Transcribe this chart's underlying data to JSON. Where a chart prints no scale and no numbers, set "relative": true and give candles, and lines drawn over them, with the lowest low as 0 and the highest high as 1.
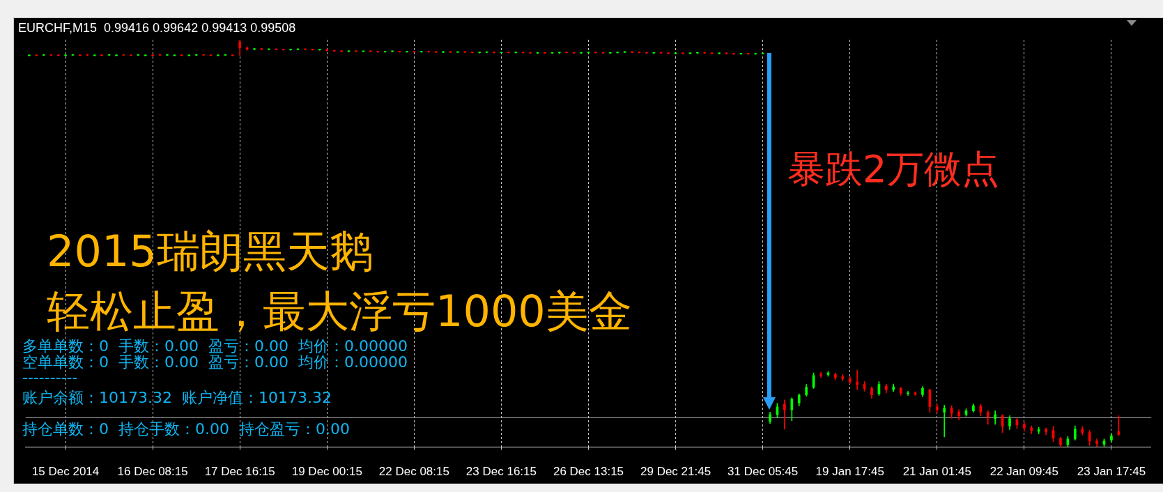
{
  "chart_data": {
    "type": "candlestick",
    "title": "EURCHF,M15  0.99416 0.99642 0.99413 0.99508",
    "relative": true,
    "grid": "x",
    "categories": [
      null,
      null,
      null,
      null,
      null,
      "15 Dec 2014",
      null,
      null,
      null,
      null,
      null,
      null,
      null,
      null,
      null,
      null,
      null,
      "16 Dec 08:15",
      null,
      null,
      null,
      null,
      null,
      null,
      null,
      null,
      null,
      null,
      null,
      "17 Dec 16:15",
      null,
      null,
      null,
      null,
      null,
      null,
      null,
      null,
      null,
      null,
      null,
      "19 Dec 00:15",
      null,
      null,
      null,
      null,
      null,
      null,
      null,
      null,
      null,
      null,
      null,
      "22 Dec 08:15",
      null,
      null,
      null,
      null,
      null,
      null,
      null,
      null,
      null,
      null,
      null,
      "23 Dec 16:15",
      null,
      null,
      null,
      null,
      null,
      null,
      null,
      null,
      null,
      null,
      null,
      "26 Dec 13:15",
      null,
      null,
      null,
      null,
      null,
      null,
      null,
      null,
      null,
      null,
      null,
      "29 Dec 21:45",
      null,
      null,
      null,
      null,
      null,
      null,
      null,
      null,
      null,
      null,
      null,
      "31 Dec 05:45",
      null,
      null,
      null,
      null,
      null,
      null,
      null,
      null,
      null,
      null,
      null,
      "19 Jan 17:45",
      null,
      null,
      null,
      null,
      null,
      null,
      null,
      null,
      null,
      null,
      null,
      "21 Jan 01:45",
      null,
      null,
      null,
      null,
      null,
      null,
      null,
      null,
      null,
      null,
      null,
      "22 Jan 09:45",
      null,
      null,
      null,
      null,
      null,
      null,
      null,
      null,
      null,
      null,
      null,
      "23 Jan 17:45",
      null,
      null,
      null,
      null,
      null
    ],
    "ohlc": [
      [
        0.961,
        0.963,
        0.961,
        0.962
      ],
      [
        0.962,
        0.963,
        0.961,
        0.961
      ],
      [
        0.962,
        0.964,
        0.961,
        0.963
      ],
      [
        0.963,
        0.963,
        0.961,
        0.962
      ],
      [
        0.962,
        0.963,
        0.961,
        0.961
      ],
      [
        0.961,
        0.963,
        0.961,
        0.962
      ],
      [
        0.962,
        0.964,
        0.961,
        0.963
      ],
      [
        0.962,
        0.963,
        0.961,
        0.961
      ],
      [
        0.963,
        0.963,
        0.961,
        0.962
      ],
      [
        0.961,
        0.963,
        0.961,
        0.962
      ],
      [
        0.962,
        0.963,
        0.961,
        0.961
      ],
      [
        0.962,
        0.964,
        0.961,
        0.963
      ],
      [
        0.961,
        0.963,
        0.961,
        0.962
      ],
      [
        0.963,
        0.963,
        0.961,
        0.962
      ],
      [
        0.962,
        0.963,
        0.961,
        0.961
      ],
      [
        0.962,
        0.964,
        0.961,
        0.963
      ],
      [
        0.961,
        0.963,
        0.961,
        0.962
      ],
      [
        0.962,
        0.963,
        0.961,
        0.961
      ],
      [
        0.963,
        0.963,
        0.961,
        0.962
      ],
      [
        0.962,
        0.964,
        0.961,
        0.963
      ],
      [
        0.961,
        0.963,
        0.961,
        0.962
      ],
      [
        0.962,
        0.963,
        0.961,
        0.961
      ],
      [
        0.961,
        0.963,
        0.961,
        0.962
      ],
      [
        0.962,
        0.964,
        0.961,
        0.963
      ],
      [
        0.963,
        0.963,
        0.961,
        0.962
      ],
      [
        0.962,
        0.963,
        0.961,
        0.961
      ],
      [
        0.961,
        0.963,
        0.961,
        0.962
      ],
      [
        0.962,
        0.964,
        0.961,
        0.963
      ],
      [
        0.962,
        0.963,
        0.961,
        0.961
      ],
      [
        0.995,
        1.0,
        0.961,
        0.98
      ],
      [
        0.98,
        0.982,
        0.974,
        0.976
      ],
      [
        0.976,
        0.979,
        0.975,
        0.978
      ],
      [
        0.978,
        0.979,
        0.975,
        0.976
      ],
      [
        0.976,
        0.978,
        0.975,
        0.977
      ],
      [
        0.977,
        0.978,
        0.975,
        0.976
      ],
      [
        0.976,
        0.977,
        0.974,
        0.975
      ],
      [
        0.975,
        0.977,
        0.974,
        0.976
      ],
      [
        0.976,
        0.978,
        0.975,
        0.977
      ],
      [
        0.977,
        0.978,
        0.975,
        0.976
      ],
      [
        0.976,
        0.977,
        0.974,
        0.975
      ],
      [
        0.975,
        0.977,
        0.974,
        0.976
      ],
      [
        0.976,
        0.976,
        0.972,
        0.973
      ],
      [
        0.973,
        0.974,
        0.971,
        0.972
      ],
      [
        0.972,
        0.973,
        0.97,
        0.971
      ],
      [
        0.971,
        0.973,
        0.97,
        0.972
      ],
      [
        0.972,
        0.973,
        0.97,
        0.971
      ],
      [
        0.971,
        0.972,
        0.97,
        0.972
      ],
      [
        0.972,
        0.973,
        0.97,
        0.971
      ],
      [
        0.971,
        0.972,
        0.969,
        0.97
      ],
      [
        0.97,
        0.972,
        0.969,
        0.971
      ],
      [
        0.971,
        0.972,
        0.97,
        0.972
      ],
      [
        0.972,
        0.972,
        0.969,
        0.97
      ],
      [
        0.97,
        0.971,
        0.969,
        0.971
      ],
      [
        0.971,
        0.972,
        0.969,
        0.97
      ],
      [
        0.97,
        0.972,
        0.969,
        0.971
      ],
      [
        0.971,
        0.971,
        0.969,
        0.97
      ],
      [
        0.97,
        0.971,
        0.968,
        0.969
      ],
      [
        0.969,
        0.971,
        0.968,
        0.97
      ],
      [
        0.97,
        0.971,
        0.968,
        0.969
      ],
      [
        0.969,
        0.97,
        0.968,
        0.97
      ],
      [
        0.97,
        0.971,
        0.968,
        0.969
      ],
      [
        0.969,
        0.97,
        0.967,
        0.968
      ],
      [
        0.968,
        0.97,
        0.967,
        0.969
      ],
      [
        0.969,
        0.97,
        0.968,
        0.97
      ],
      [
        0.97,
        0.97,
        0.967,
        0.968
      ],
      [
        0.968,
        0.969,
        0.967,
        0.969
      ],
      [
        0.969,
        0.97,
        0.967,
        0.968
      ],
      [
        0.968,
        0.97,
        0.967,
        0.969
      ],
      [
        0.969,
        0.969,
        0.967,
        0.968
      ],
      [
        0.968,
        0.969,
        0.966,
        0.967
      ],
      [
        0.967,
        0.969,
        0.966,
        0.968
      ],
      [
        0.968,
        0.969,
        0.966,
        0.967
      ],
      [
        0.967,
        0.968,
        0.966,
        0.968
      ],
      [
        0.968,
        0.969,
        0.966,
        0.969
      ],
      [
        0.969,
        0.97,
        0.967,
        0.968
      ],
      [
        0.968,
        0.969,
        0.966,
        0.967
      ],
      [
        0.967,
        0.969,
        0.966,
        0.968
      ],
      [
        0.968,
        0.97,
        0.967,
        0.969
      ],
      [
        0.969,
        0.97,
        0.967,
        0.968
      ],
      [
        0.968,
        0.969,
        0.966,
        0.967
      ],
      [
        0.967,
        0.968,
        0.966,
        0.968
      ],
      [
        0.968,
        0.97,
        0.967,
        0.969
      ],
      [
        0.969,
        0.971,
        0.968,
        0.97
      ],
      [
        0.97,
        0.971,
        0.968,
        0.969
      ],
      [
        0.969,
        0.97,
        0.967,
        0.968
      ],
      [
        0.968,
        0.969,
        0.966,
        0.967
      ],
      [
        0.967,
        0.969,
        0.966,
        0.968
      ],
      [
        0.968,
        0.969,
        0.966,
        0.967
      ],
      [
        0.967,
        0.968,
        0.965,
        0.966
      ],
      [
        0.966,
        0.968,
        0.965,
        0.967
      ],
      [
        0.967,
        0.968,
        0.965,
        0.966
      ],
      [
        0.966,
        0.968,
        0.965,
        0.967
      ],
      [
        0.967,
        0.969,
        0.966,
        0.968
      ],
      [
        0.968,
        0.969,
        0.966,
        0.967
      ],
      [
        0.967,
        0.968,
        0.965,
        0.966
      ],
      [
        0.966,
        0.968,
        0.965,
        0.967
      ],
      [
        0.967,
        0.968,
        0.965,
        0.966
      ],
      [
        0.966,
        0.967,
        0.964,
        0.965
      ],
      [
        0.965,
        0.967,
        0.964,
        0.966
      ],
      [
        0.966,
        0.967,
        0.964,
        0.965
      ],
      [
        0.965,
        0.967,
        0.964,
        0.966
      ],
      [
        0.966,
        0.967,
        0.965,
        0.967
      ],
      [
        0.063,
        0.086,
        0.058,
        0.08
      ],
      [
        0.08,
        0.108,
        0.073,
        0.099
      ],
      [
        0.105,
        0.116,
        0.044,
        0.092
      ],
      [
        0.092,
        0.121,
        0.065,
        0.118
      ],
      [
        0.108,
        0.131,
        0.101,
        0.128
      ],
      [
        0.128,
        0.154,
        0.125,
        0.147
      ],
      [
        0.147,
        0.182,
        0.144,
        0.176
      ],
      [
        0.179,
        0.184,
        0.171,
        0.176
      ],
      [
        0.178,
        0.186,
        0.174,
        0.182
      ],
      [
        0.179,
        0.182,
        0.165,
        0.171
      ],
      [
        0.173,
        0.178,
        0.163,
        0.168
      ],
      [
        0.168,
        0.173,
        0.155,
        0.16
      ],
      [
        0.16,
        0.189,
        0.141,
        0.154
      ],
      [
        0.154,
        0.161,
        0.137,
        0.144
      ],
      [
        0.144,
        0.148,
        0.12,
        0.128
      ],
      [
        0.131,
        0.161,
        0.127,
        0.154
      ],
      [
        0.15,
        0.155,
        0.133,
        0.141
      ],
      [
        0.141,
        0.155,
        0.136,
        0.148
      ],
      [
        0.144,
        0.147,
        0.127,
        0.133
      ],
      [
        0.131,
        0.137,
        0.127,
        0.133
      ],
      [
        0.133,
        0.136,
        0.127,
        0.13
      ],
      [
        0.129,
        0.149,
        0.124,
        0.144
      ],
      [
        0.141,
        0.142,
        0.086,
        0.099
      ],
      [
        0.099,
        0.105,
        0.084,
        0.092
      ],
      [
        0.086,
        0.103,
        0.025,
        0.096
      ],
      [
        0.096,
        0.102,
        0.071,
        0.083
      ],
      [
        0.086,
        0.092,
        0.067,
        0.077
      ],
      [
        0.08,
        0.094,
        0.076,
        0.089
      ],
      [
        0.089,
        0.106,
        0.086,
        0.102
      ],
      [
        0.101,
        0.105,
        0.077,
        0.086
      ],
      [
        0.086,
        0.09,
        0.056,
        0.073
      ],
      [
        0.07,
        0.089,
        0.056,
        0.08
      ],
      [
        0.077,
        0.08,
        0.036,
        0.051
      ],
      [
        0.052,
        0.077,
        0.043,
        0.07
      ],
      [
        0.067,
        0.07,
        0.046,
        0.054
      ],
      [
        0.056,
        0.06,
        0.039,
        0.047
      ],
      [
        0.047,
        0.052,
        0.033,
        0.041
      ],
      [
        0.039,
        0.049,
        0.033,
        0.043
      ],
      [
        0.043,
        0.047,
        0.03,
        0.038
      ],
      [
        0.041,
        0.051,
        0.013,
        0.022
      ],
      [
        0.022,
        0.024,
        0.0,
        0.006
      ],
      [
        0.006,
        0.026,
        0.001,
        0.02
      ],
      [
        0.02,
        0.052,
        0.017,
        0.044
      ],
      [
        0.044,
        0.051,
        0.03,
        0.036
      ],
      [
        0.036,
        0.041,
        0.004,
        0.015
      ],
      [
        0.015,
        0.02,
        0.001,
        0.009
      ],
      [
        0.007,
        0.02,
        0.002,
        0.015
      ],
      [
        0.017,
        0.033,
        0.013,
        0.028
      ],
      [
        0.038,
        0.077,
        0.028,
        0.031
      ],
      null,
      null,
      null,
      null
    ],
    "colors": [
      "#00ff00",
      "#ff0000",
      "#00ff00",
      "#ff0000",
      "#ff0000",
      "#00ff00",
      "#00ff00",
      "#ff0000",
      "#ff0000",
      "#00ff00",
      "#ff0000",
      "#00ff00",
      "#00ff00",
      "#ff0000",
      "#ff0000",
      "#00ff00",
      "#00ff00",
      "#ff0000",
      "#ff0000",
      "#00ff00",
      "#00ff00",
      "#ff0000",
      "#00ff00",
      "#00ff00",
      "#ff0000",
      "#ff0000",
      "#00ff00",
      "#00ff00",
      "#ff0000",
      "#ff0000",
      "#ff0000",
      "#00ff00",
      "#ff0000",
      "#00ff00",
      "#ff0000",
      "#ff0000",
      "#00ff00",
      "#00ff00",
      "#ff0000",
      "#ff0000",
      "#00ff00",
      "#ff0000",
      "#ff0000",
      "#ff0000",
      "#00ff00",
      "#ff0000",
      "#00ff00",
      "#ff0000",
      "#ff0000",
      "#00ff00",
      "#00ff00",
      "#ff0000",
      "#00ff00",
      "#ff0000",
      "#00ff00",
      "#ff0000",
      "#ff0000",
      "#00ff00",
      "#ff0000",
      "#00ff00",
      "#ff0000",
      "#ff0000",
      "#00ff00",
      "#00ff00",
      "#ff0000",
      "#00ff00",
      "#ff0000",
      "#00ff00",
      "#ff0000",
      "#ff0000",
      "#00ff00",
      "#ff0000",
      "#00ff00",
      "#00ff00",
      "#ff0000",
      "#ff0000",
      "#00ff00",
      "#00ff00",
      "#ff0000",
      "#ff0000",
      "#00ff00",
      "#00ff00",
      "#00ff00",
      "#ff0000",
      "#ff0000",
      "#ff0000",
      "#00ff00",
      "#ff0000",
      "#ff0000",
      "#00ff00",
      "#ff0000",
      "#00ff00",
      "#00ff00",
      "#ff0000",
      "#ff0000",
      "#00ff00",
      "#ff0000",
      "#ff0000",
      "#00ff00",
      "#ff0000",
      "#00ff00",
      "#00ff00",
      "#00ff00",
      "#00ff00",
      "#ff0000",
      "#00ff00",
      "#00ff00",
      "#00ff00",
      "#00ff00",
      "#ff0000",
      "#00ff00",
      "#ff0000",
      "#ff0000",
      "#ff0000",
      "#ff0000",
      "#ff0000",
      "#ff0000",
      "#00ff00",
      "#ff0000",
      "#00ff00",
      "#ff0000",
      "#00ff00",
      "#ff0000",
      "#00ff00",
      "#ff0000",
      "#ff0000",
      "#00ff00",
      "#ff0000",
      "#ff0000",
      "#00ff00",
      "#00ff00",
      "#ff0000",
      "#ff0000",
      "#00ff00",
      "#ff0000",
      "#00ff00",
      "#ff0000",
      "#ff0000",
      "#ff0000",
      "#00ff00",
      "#ff0000",
      "#ff0000",
      "#ff0000",
      "#00ff00",
      "#00ff00",
      "#ff0000",
      "#ff0000",
      "#ff0000",
      "#00ff00",
      "#00ff00",
      "#ff0000",
      null,
      null,
      null,
      null
    ],
    "ref_lines": [
      {
        "axis": "y",
        "value": 0.072,
        "color": "#a0a0a0"
      }
    ],
    "annotations": [
      "暴跌2万微点",
      "2015瑞朗黑天鹅",
      "轻松止盈，最大浮亏1000美金",
      "多单单数：0  手数：0.00  盈亏：0.00  均价：0.00000",
      "空单单数：0  手数：0.00  盈亏：0.00  均价：0.00000",
      "----------",
      "账户余额：10173.32  账户净值：10173.32",
      "持仓单数：0  持仓手数：0.00  持仓盈亏：0.00"
    ]
  }
}
